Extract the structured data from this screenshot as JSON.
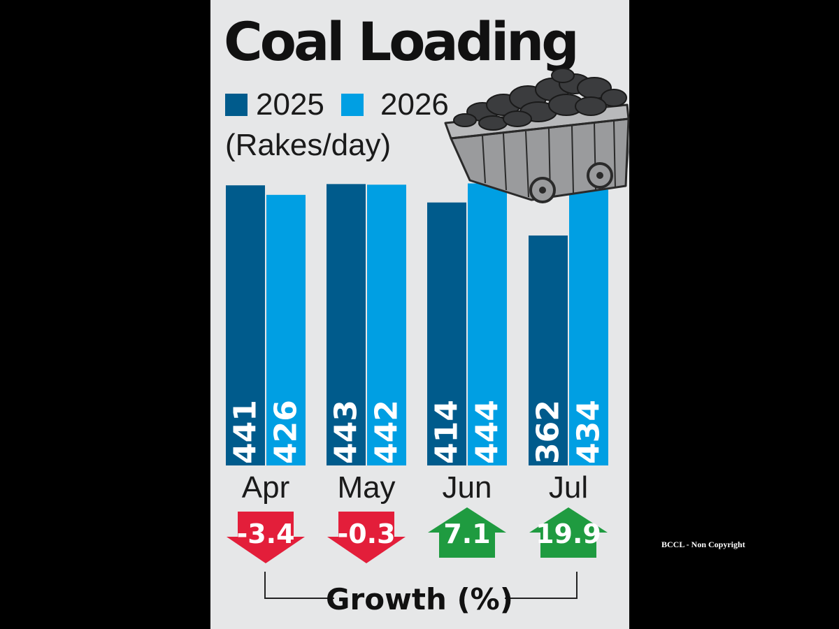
{
  "chart_data": {
    "type": "bar",
    "title": "Coal Loading",
    "ylabel": "(Rakes/day)",
    "categories": [
      "Apr",
      "May",
      "Jun",
      "Jul"
    ],
    "series": [
      {
        "name": "2025",
        "color": "#005b8c",
        "values": [
          441,
          443,
          414,
          362
        ]
      },
      {
        "name": "2026",
        "color": "#009fe3",
        "values": [
          426,
          442,
          444,
          434
        ]
      }
    ],
    "value_labels": [
      [
        "441",
        "443",
        "414",
        "362"
      ],
      [
        "426",
        "442",
        "444",
        "434"
      ]
    ],
    "growth": {
      "label": "Growth (%)",
      "values": [
        -3.4,
        -0.3,
        7.1,
        19.9
      ],
      "labels": [
        "-3.4",
        "-0.3",
        "7.1",
        "19.9"
      ],
      "colors": {
        "down": "#e31e3a",
        "up": "#1f9b40"
      }
    },
    "ylim": [
      0,
      450
    ],
    "grid": false,
    "legend": "top-left"
  },
  "watermark": "BCCL - Non Copyright",
  "decoration": "coal-wagon-illustration"
}
